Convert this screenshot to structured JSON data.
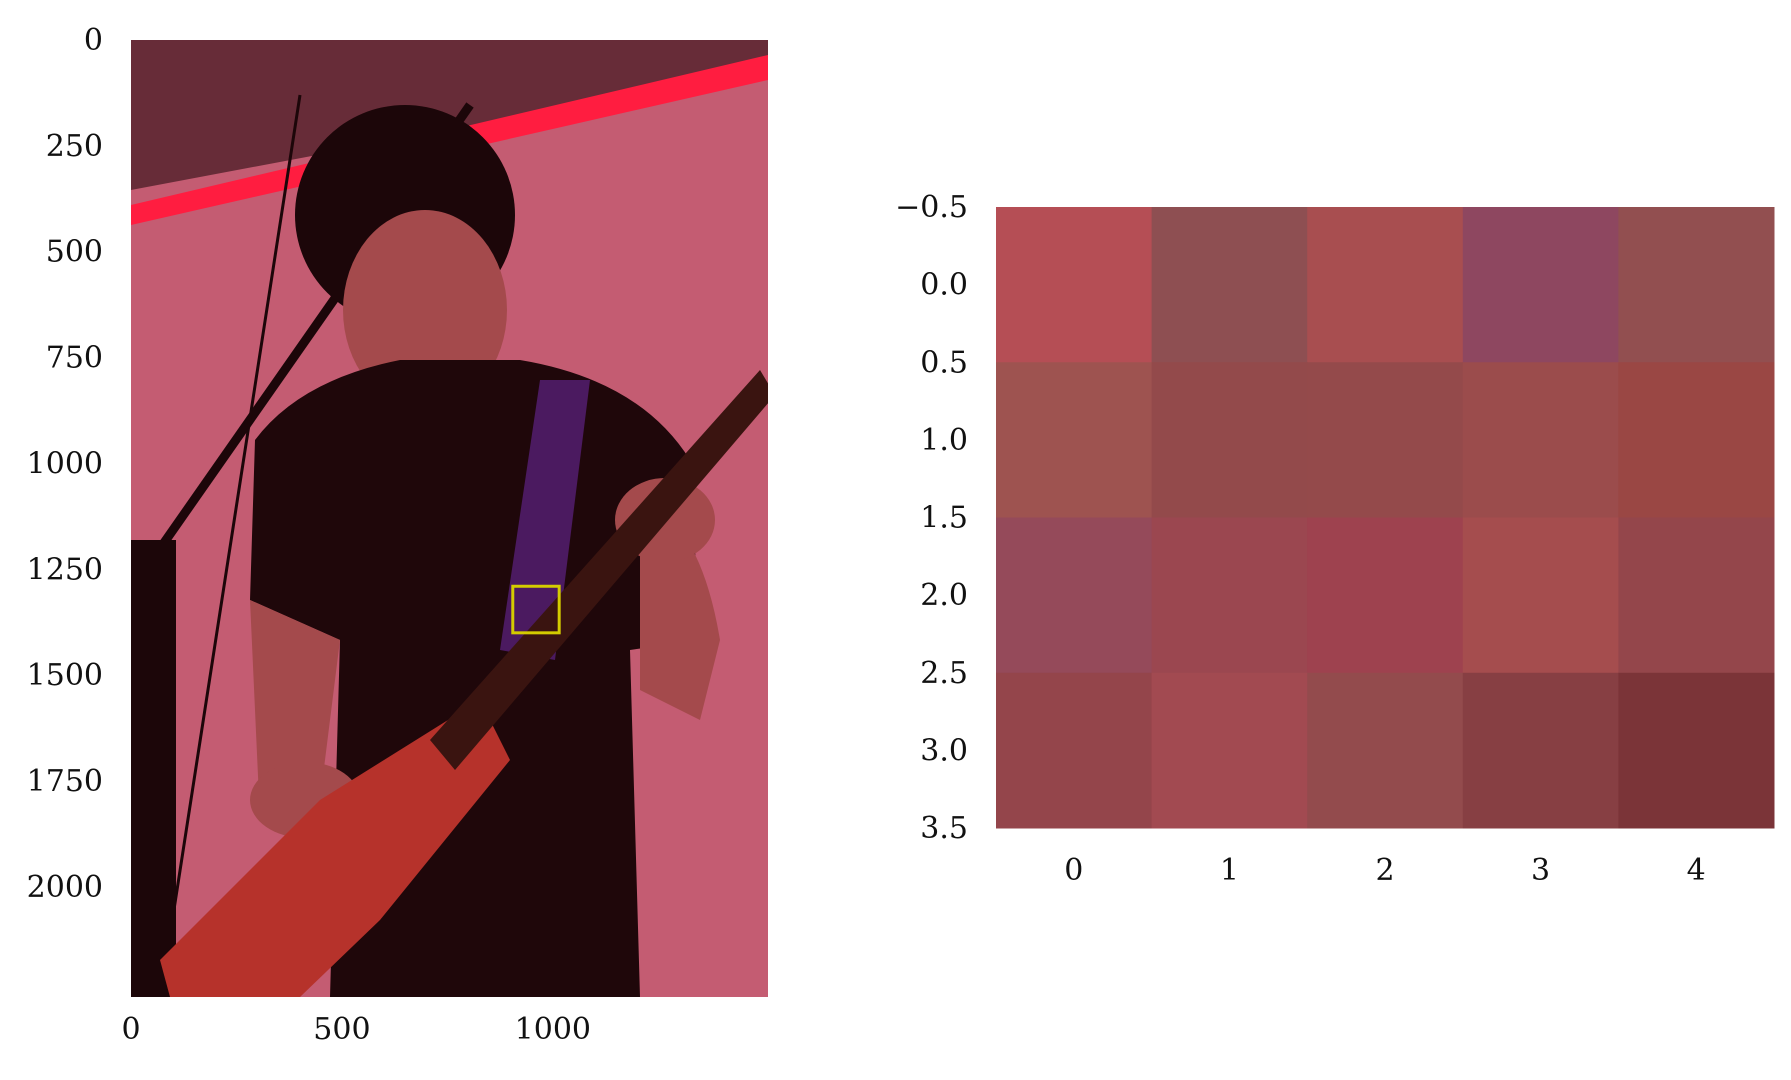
{
  "chart_data": [
    {
      "type": "image",
      "x_ticks": [
        "0",
        "500",
        "1000"
      ],
      "x_tick_values": [
        0,
        500,
        1000
      ],
      "y_ticks": [
        "0",
        "250",
        "500",
        "750",
        "1000",
        "1250",
        "1500",
        "1750",
        "2000"
      ],
      "y_tick_values": [
        0,
        250,
        500,
        750,
        1000,
        1250,
        1500,
        1750,
        2000
      ],
      "xlim": [
        0,
        1510
      ],
      "ylim": [
        2260,
        0
      ],
      "highlight_box": {
        "x": [
          905,
          1015
        ],
        "y": [
          1290,
          1400
        ],
        "color": "#d4cc00"
      },
      "palette": {
        "background": "#c45c72",
        "dark": "#1c0609",
        "shirt": "#1f070a",
        "skin": "#a44a4c",
        "guitar": "#b6322b",
        "strap": "#4b1a60",
        "stage_light": "#ff1d40"
      }
    },
    {
      "type": "heatmap",
      "x_ticks": [
        "0",
        "1",
        "2",
        "3",
        "4"
      ],
      "x_tick_values": [
        0,
        1,
        2,
        3,
        4
      ],
      "y_ticks": [
        "−0.5",
        "0.0",
        "0.5",
        "1.0",
        "1.5",
        "2.0",
        "2.5",
        "3.0",
        "3.5"
      ],
      "y_tick_values": [
        -0.5,
        0.0,
        0.5,
        1.0,
        1.5,
        2.0,
        2.5,
        3.0,
        3.5
      ],
      "xlim": [
        -0.5,
        4.5
      ],
      "ylim": [
        3.5,
        -0.5
      ],
      "cells": [
        [
          "#b54e55",
          "#8e4f52",
          "#a84e50",
          "#8e4760",
          "#924f50"
        ],
        [
          "#9e5350",
          "#934a4b",
          "#944a4b",
          "#9b4c4c",
          "#9a4744"
        ],
        [
          "#954a5a",
          "#9b4750",
          "#9e424f",
          "#a54d4e",
          "#94464b"
        ],
        [
          "#94454b",
          "#a24a51",
          "#934b4d",
          "#873f43",
          "#7b3438"
        ]
      ]
    }
  ]
}
